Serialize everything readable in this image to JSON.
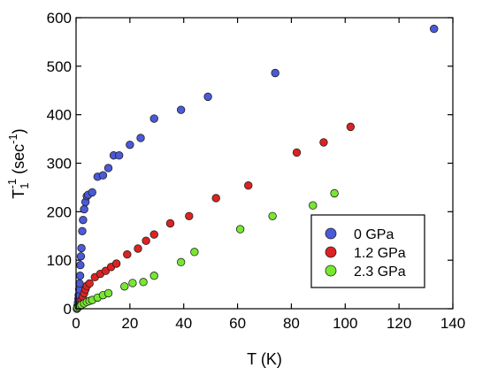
{
  "chart_data": {
    "type": "scatter",
    "xlabel": "T (K)",
    "ylabel": {
      "main": "T",
      "sub": "1",
      "sup": "-1",
      "unit": "(sec",
      "unit_sup": "-1",
      "unit_close": ")"
    },
    "xlim": [
      0,
      140
    ],
    "ylim": [
      0,
      600
    ],
    "xticks": [
      0,
      20,
      40,
      60,
      80,
      100,
      120,
      140
    ],
    "yticks": [
      0,
      100,
      200,
      300,
      400,
      500,
      600
    ],
    "legend_position": "bottom-right",
    "series": [
      {
        "name": "0 GPa",
        "color": "#4a5ad8",
        "points": [
          [
            0.3,
            0
          ],
          [
            0.5,
            5
          ],
          [
            0.7,
            12
          ],
          [
            0.9,
            20
          ],
          [
            1.0,
            28
          ],
          [
            1.2,
            40
          ],
          [
            1.3,
            52
          ],
          [
            1.5,
            68
          ],
          [
            1.6,
            90
          ],
          [
            1.8,
            108
          ],
          [
            2.0,
            125
          ],
          [
            2.3,
            160
          ],
          [
            2.6,
            183
          ],
          [
            3.0,
            205
          ],
          [
            3.5,
            220
          ],
          [
            4.0,
            232
          ],
          [
            4.5,
            235
          ],
          [
            6.0,
            240
          ],
          [
            8.0,
            272
          ],
          [
            10.0,
            275
          ],
          [
            12.0,
            290
          ],
          [
            14.0,
            316
          ],
          [
            16.0,
            316
          ],
          [
            20.0,
            338
          ],
          [
            24.0,
            352
          ],
          [
            29.0,
            392
          ],
          [
            39.0,
            410
          ],
          [
            49.0,
            437
          ],
          [
            74.0,
            486
          ],
          [
            133.0,
            577
          ]
        ]
      },
      {
        "name": "1.2 GPa",
        "color": "#dd2222",
        "points": [
          [
            0.5,
            2
          ],
          [
            1.0,
            5
          ],
          [
            1.5,
            10
          ],
          [
            2.0,
            18
          ],
          [
            2.5,
            25
          ],
          [
            3.0,
            32
          ],
          [
            3.5,
            40
          ],
          [
            4.0,
            47
          ],
          [
            5.0,
            52
          ],
          [
            7.0,
            65
          ],
          [
            9.0,
            72
          ],
          [
            11.0,
            78
          ],
          [
            13.0,
            86
          ],
          [
            15.0,
            93
          ],
          [
            19.0,
            112
          ],
          [
            23.0,
            124
          ],
          [
            26.0,
            140
          ],
          [
            29.0,
            153
          ],
          [
            35.0,
            176
          ],
          [
            42.0,
            191
          ],
          [
            52.0,
            228
          ],
          [
            64.0,
            254
          ],
          [
            82.0,
            322
          ],
          [
            92.0,
            343
          ],
          [
            102.0,
            375
          ]
        ]
      },
      {
        "name": "2.3 GPa",
        "color": "#77e830",
        "points": [
          [
            0.5,
            2
          ],
          [
            1.0,
            4
          ],
          [
            1.5,
            6
          ],
          [
            2.0,
            8
          ],
          [
            3.0,
            11
          ],
          [
            4.0,
            14
          ],
          [
            5.0,
            16
          ],
          [
            6.0,
            18
          ],
          [
            8.0,
            23
          ],
          [
            10.0,
            28
          ],
          [
            12.0,
            32
          ],
          [
            18.0,
            46
          ],
          [
            21.0,
            53
          ],
          [
            25.0,
            55
          ],
          [
            29.0,
            68
          ],
          [
            39.0,
            96
          ],
          [
            44.0,
            117
          ],
          [
            61.0,
            164
          ],
          [
            73.0,
            191
          ],
          [
            88.0,
            213
          ],
          [
            96.0,
            238
          ]
        ]
      }
    ]
  }
}
